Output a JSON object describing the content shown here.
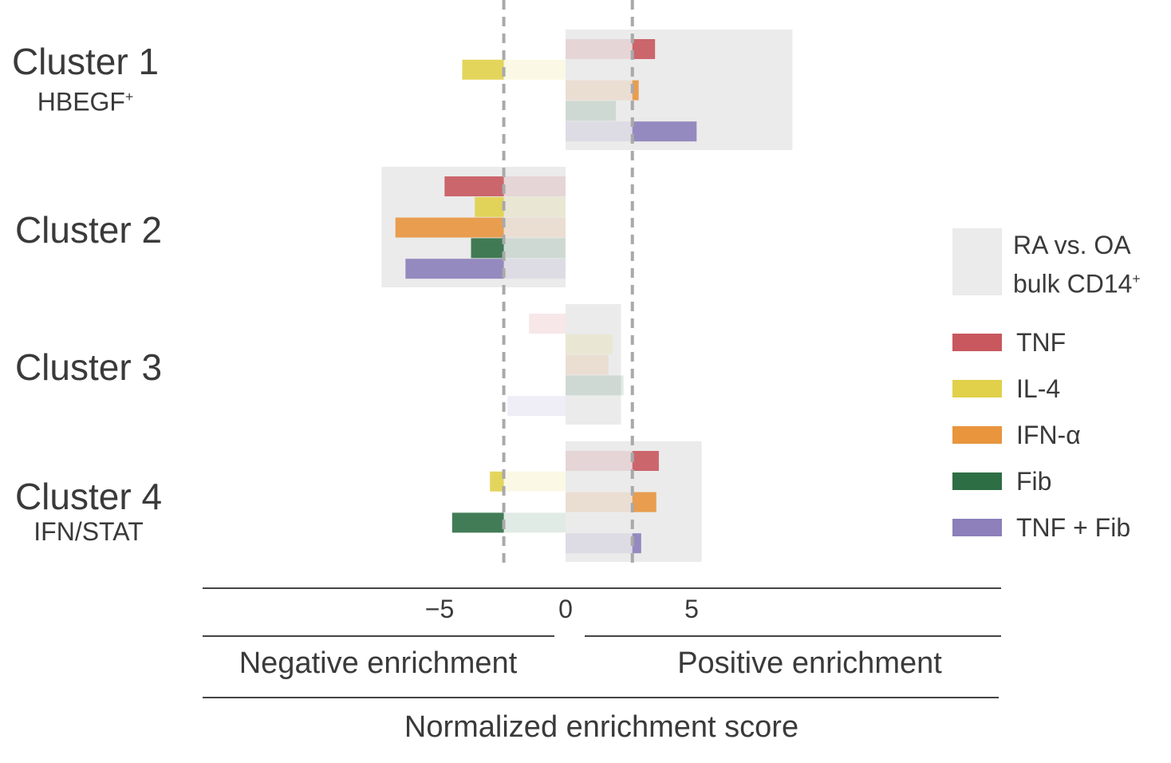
{
  "chart_data": {
    "type": "bar",
    "orientation": "horizontal",
    "xlabel": "Normalized enrichment score",
    "xlim": [
      -7.2,
      8.6
    ],
    "xticks": [
      -5,
      0,
      5
    ],
    "xtick_labels": [
      "−5",
      "0",
      "5"
    ],
    "threshold_lines": [
      -2.45,
      2.65
    ],
    "region_labels": {
      "negative": "Negative enrichment",
      "positive": "Positive enrichment"
    },
    "legend": {
      "background_entry": {
        "line1": "RA vs. OA",
        "line2_prefix": "bulk CD14",
        "line2_sup": "+"
      },
      "placement": "right"
    },
    "series": [
      {
        "name": "TNF",
        "color": "#c8585e"
      },
      {
        "name": "IL-4",
        "color": "#e0d04a"
      },
      {
        "name": "IFN-α",
        "color": "#e8953e"
      },
      {
        "name": "Fib",
        "color": "#2e6e45"
      },
      {
        "name": "TNF + Fib",
        "color": "#8c7fba"
      }
    ],
    "clusters": [
      {
        "name": "Cluster 1",
        "sub": "HBEGF",
        "sub_sup": "+",
        "bulk": 9.0,
        "values": [
          3.55,
          -4.1,
          2.9,
          2.0,
          5.2
        ]
      },
      {
        "name": "Cluster 2",
        "sub": "",
        "sub_sup": "",
        "bulk": -7.3,
        "values": [
          -4.8,
          -3.6,
          -6.75,
          -3.75,
          -6.35
        ]
      },
      {
        "name": "Cluster 3",
        "sub": "",
        "sub_sup": "",
        "bulk": 2.2,
        "values": [
          -1.45,
          1.85,
          1.7,
          2.3,
          -2.3
        ]
      },
      {
        "name": "Cluster 4",
        "sub": "IFN/STAT",
        "sub_sup": "",
        "bulk": 5.4,
        "values": [
          3.7,
          -3.0,
          3.6,
          -4.5,
          3.0
        ]
      }
    ]
  }
}
